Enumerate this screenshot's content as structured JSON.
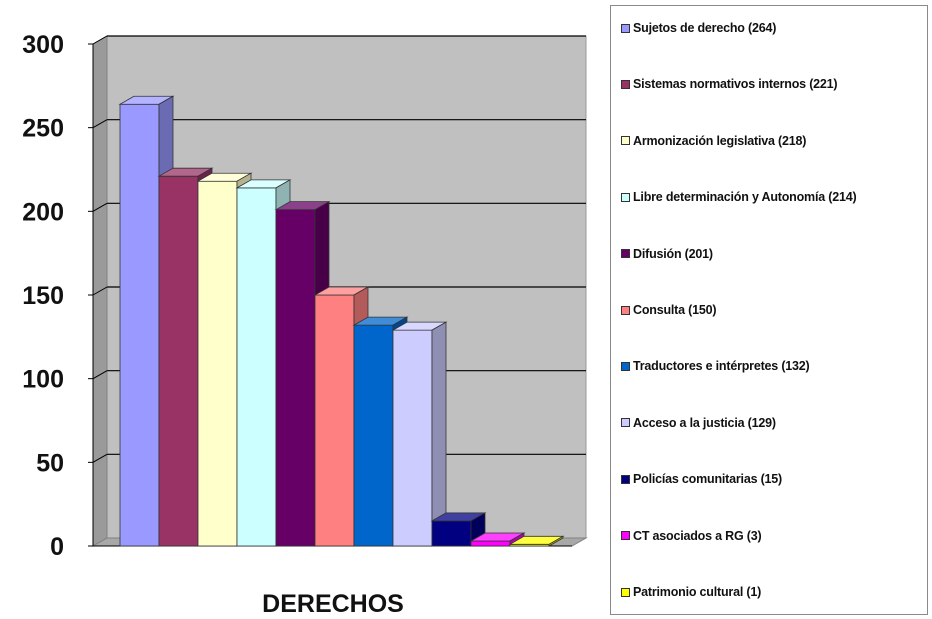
{
  "chart_data": {
    "type": "bar",
    "title": "",
    "xlabel": "DERECHOS",
    "ylabel": "",
    "ylim": [
      0,
      300
    ],
    "yticks": [
      0,
      50,
      100,
      150,
      200,
      250,
      300
    ],
    "grid": true,
    "legend_position": "right",
    "style": "3d-column",
    "series": [
      {
        "label": "Sujetos de derecho (264)",
        "value": 264,
        "color": "#9999ff"
      },
      {
        "label": "Sistemas normativos internos (221)",
        "value": 221,
        "color": "#993366"
      },
      {
        "label": "Armonización legislativa (218)",
        "value": 218,
        "color": "#ffffcc"
      },
      {
        "label": "Libre determinación y Autonomía (214)",
        "value": 214,
        "color": "#ccffff"
      },
      {
        "label": "Difusión (201)",
        "value": 201,
        "color": "#660066"
      },
      {
        "label": "Consulta (150)",
        "value": 150,
        "color": "#ff8080"
      },
      {
        "label": "Traductores e intérpretes (132)",
        "value": 132,
        "color": "#0066cc"
      },
      {
        "label": "Acceso a la justicia (129)",
        "value": 129,
        "color": "#ccccff"
      },
      {
        "label": "Policías comunitarias (15)",
        "value": 15,
        "color": "#000080"
      },
      {
        "label": "CT asociados a RG (3)",
        "value": 3,
        "color": "#ff00ff"
      },
      {
        "label": "Patrimonio cultural (1)",
        "value": 1,
        "color": "#ffff00"
      }
    ]
  }
}
